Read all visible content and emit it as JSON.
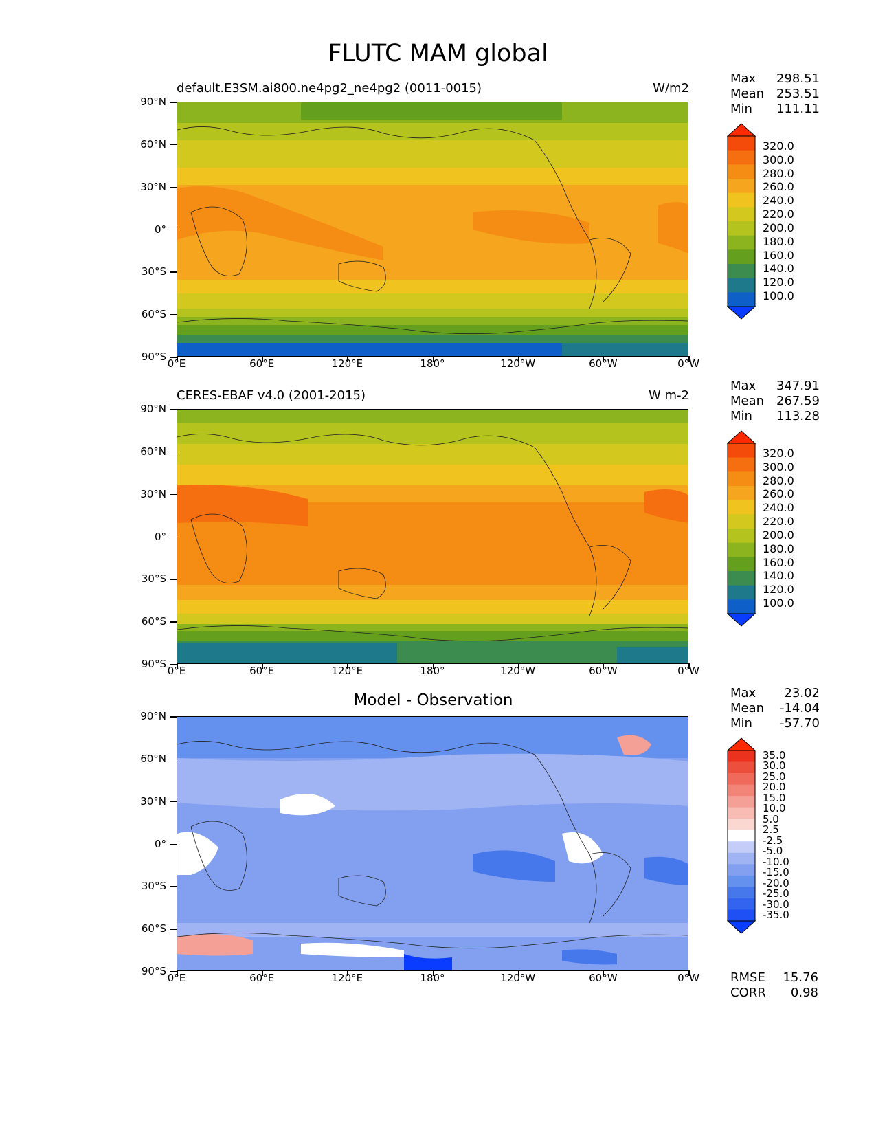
{
  "figure": {
    "title": "FLUTC MAM global"
  },
  "axes": {
    "lat_ticks": [
      "90°N",
      "60°N",
      "30°N",
      "0°",
      "30°S",
      "60°S",
      "90°S"
    ],
    "lon_ticks": [
      "0°E",
      "60°E",
      "120°E",
      "180°",
      "120°W",
      "60°W",
      "0°W"
    ]
  },
  "panels": [
    {
      "left_label": "default.E3SM.ai800.ne4pg2_ne4pg2 (0011-0015)",
      "right_label": "W/m2",
      "center_label": "",
      "stats": {
        "max_label": "Max",
        "max": "298.51",
        "mean_label": "Mean",
        "mean": "253.51",
        "min_label": "Min",
        "min": "111.11"
      },
      "colorbar_labels": [
        "320.0",
        "300.0",
        "280.0",
        "260.0",
        "240.0",
        "220.0",
        "200.0",
        "180.0",
        "160.0",
        "140.0",
        "120.0",
        "100.0"
      ]
    },
    {
      "left_label": "CERES-EBAF v4.0 (2001-2015)",
      "right_label": "W m-2",
      "center_label": "",
      "stats": {
        "max_label": "Max",
        "max": "347.91",
        "mean_label": "Mean",
        "mean": "267.59",
        "min_label": "Min",
        "min": "113.28"
      },
      "colorbar_labels": [
        "320.0",
        "300.0",
        "280.0",
        "260.0",
        "240.0",
        "220.0",
        "200.0",
        "180.0",
        "160.0",
        "140.0",
        "120.0",
        "100.0"
      ]
    },
    {
      "left_label": "",
      "right_label": "",
      "center_label": "Model - Observation",
      "stats": {
        "max_label": "Max",
        "max": "23.02",
        "mean_label": "Mean",
        "mean": "-14.04",
        "min_label": "Min",
        "min": "-57.70"
      },
      "colorbar_labels": [
        "35.0",
        "30.0",
        "25.0",
        "20.0",
        "15.0",
        "10.0",
        "5.0",
        "2.5",
        "-2.5",
        "-5.0",
        "-10.0",
        "-15.0",
        "-20.0",
        "-25.0",
        "-30.0",
        "-35.0"
      ],
      "metrics": {
        "rmse_label": "RMSE",
        "rmse": "15.76",
        "corr_label": "CORR",
        "corr": "0.98"
      }
    }
  ],
  "colors": {
    "abs_scale": [
      "#0a3cff",
      "#0f5fc8",
      "#1e7a8a",
      "#3c8c50",
      "#64a01e",
      "#8cb41e",
      "#b4c31e",
      "#d2c81e",
      "#f0c31e",
      "#f5a51e",
      "#f58c14",
      "#f56e0f",
      "#f54b0a",
      "#ff2a00"
    ],
    "diff_scale": [
      "#0a3cff",
      "#1e50f5",
      "#3264f0",
      "#4678ec",
      "#6490ee",
      "#829ff0",
      "#a0b4f3",
      "#c3cdf7",
      "#ffffff",
      "#fbd7d2",
      "#f8bcb4",
      "#f5a096",
      "#f28478",
      "#ef6a5a",
      "#ec503c",
      "#ea321e",
      "#ff2a00"
    ]
  }
}
